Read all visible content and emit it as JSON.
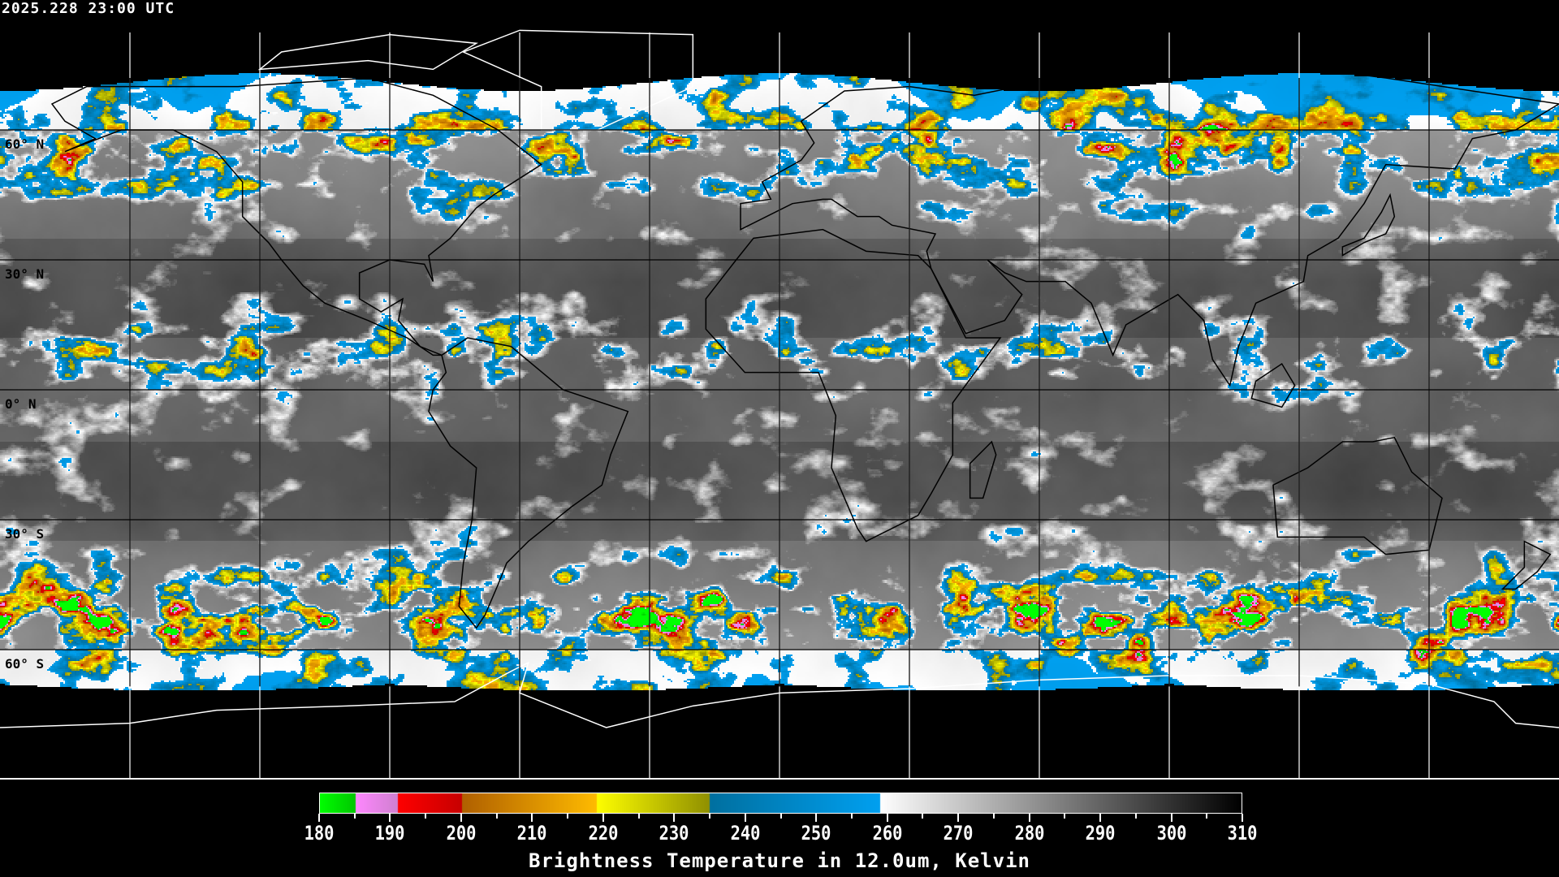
{
  "header": {
    "timestamp": "2025.228 23:00 UTC"
  },
  "map": {
    "projection": "equirectangular",
    "lon_range": [
      -180,
      180
    ],
    "lat_range": [
      -90,
      90
    ],
    "gridline_lon_step": 30,
    "gridline_lat_step": 30,
    "lat_labels": [
      {
        "lat": 60,
        "text": "60° N"
      },
      {
        "lat": 30,
        "text": "30° N"
      },
      {
        "lat": 0,
        "text": "0° N"
      },
      {
        "lat": -30,
        "text": "30° S"
      },
      {
        "lat": -60,
        "text": "60° S"
      }
    ]
  },
  "colorbar": {
    "title": "Brightness Temperature in 12.0um, Kelvin",
    "range": [
      180,
      310
    ],
    "tick_labels": [
      "180",
      "190",
      "200",
      "210",
      "220",
      "230",
      "240",
      "250",
      "260",
      "270",
      "280",
      "290",
      "300",
      "310"
    ],
    "minor_tick_step": 5,
    "segments": [
      {
        "from": 180,
        "to": 185,
        "c0": "#00ff00",
        "c1": "#00c800"
      },
      {
        "from": 185,
        "to": 191,
        "c0": "#ff88ff",
        "c1": "#d080d0"
      },
      {
        "from": 191,
        "to": 200,
        "c0": "#ff0000",
        "c1": "#c80000"
      },
      {
        "from": 200,
        "to": 219,
        "c0": "#b06000",
        "c1": "#ffbb00"
      },
      {
        "from": 219,
        "to": 235,
        "c0": "#ffff00",
        "c1": "#909000"
      },
      {
        "from": 235,
        "to": 259,
        "c0": "#0070a0",
        "c1": "#00a0f0"
      },
      {
        "from": 259,
        "to": 310,
        "c0": "#ffffff",
        "c1": "#000000"
      }
    ]
  }
}
